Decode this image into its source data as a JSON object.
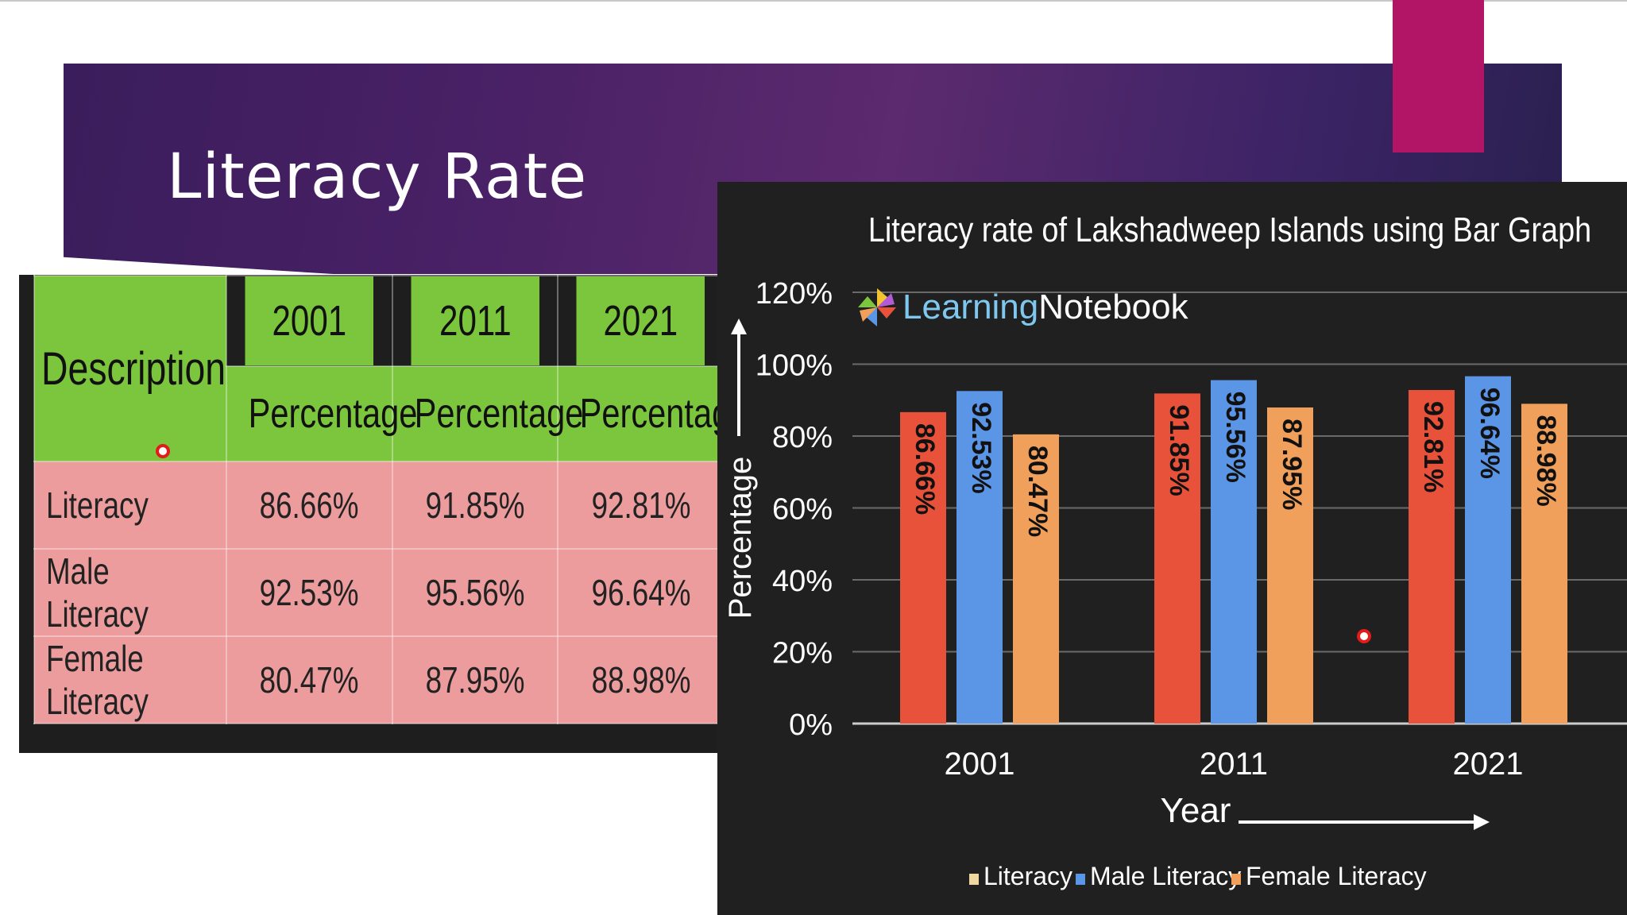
{
  "slide": {
    "title": "Literacy Rate"
  },
  "table": {
    "header": {
      "description": "Description",
      "years": [
        "2001",
        "2011",
        "2021"
      ],
      "subheader": "Percentage"
    },
    "rows": [
      {
        "label": "Literacy",
        "values": [
          "86.66%",
          "91.85%",
          "92.81%"
        ]
      },
      {
        "label": "Male Literacy",
        "values": [
          "92.53%",
          "95.56%",
          "96.64%"
        ]
      },
      {
        "label": "Female Literacy",
        "values": [
          "80.47%",
          "87.95%",
          "88.98%"
        ]
      }
    ]
  },
  "logo": {
    "part1": "Learning",
    "part2": "Notebook"
  },
  "chart_data": {
    "type": "bar",
    "title": "Literacy rate of Lakshadweep Islands using Bar Graph",
    "xlabel": "Year",
    "ylabel": "Percentage",
    "categories": [
      "2001",
      "2011",
      "2021"
    ],
    "ylim": [
      0,
      120
    ],
    "yticks": [
      "0%",
      "20%",
      "40%",
      "60%",
      "80%",
      "100%",
      "120%"
    ],
    "grid": true,
    "legend": "bottom",
    "series": [
      {
        "name": "Literacy",
        "values": [
          86.66,
          91.85,
          92.81
        ],
        "labels": [
          "86.66%",
          "91.85%",
          "92.81%"
        ],
        "color": "#e8523a",
        "legend_color": "#f0d9a0"
      },
      {
        "name": "Male Literacy",
        "values": [
          92.53,
          95.56,
          96.64
        ],
        "labels": [
          "92.53%",
          "95.56%",
          "96.64%"
        ],
        "color": "#5b95e6",
        "legend_color": "#5b95e6"
      },
      {
        "name": "Female Literacy",
        "values": [
          80.47,
          87.95,
          88.98
        ],
        "labels": [
          "80.47%",
          "87.95%",
          "88.98%"
        ],
        "color": "#f0a05a",
        "legend_color": "#f0a05a"
      }
    ]
  }
}
